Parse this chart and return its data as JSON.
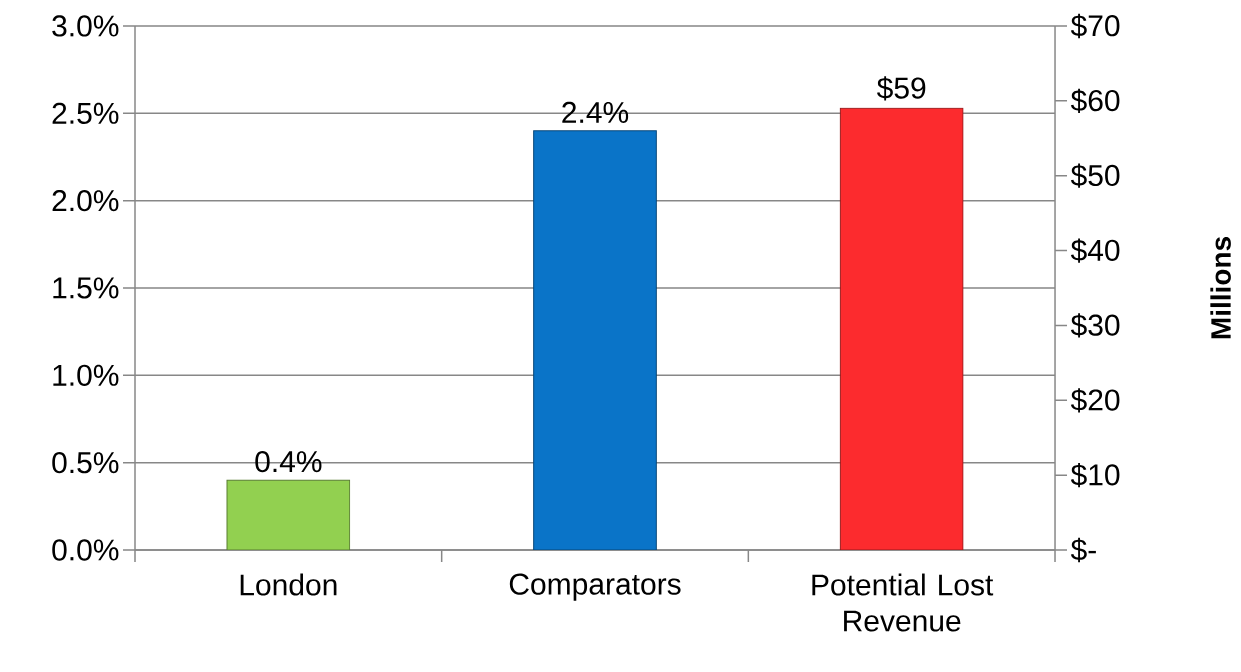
{
  "chart_data": {
    "type": "bar",
    "categories": [
      "London",
      "Comparators",
      "Potential Lost Revenue"
    ],
    "series": [
      {
        "values": [
          0.4,
          2.4,
          null
        ],
        "colors": [
          "#92d050",
          "#0a74c8",
          null
        ],
        "value_labels": [
          "0.4%",
          "2.4%",
          null
        ]
      },
      {
        "values": [
          null,
          null,
          59
        ],
        "colors": [
          null,
          null,
          "#fc2b2e"
        ],
        "axis": "y2",
        "value_labels": [
          null,
          null,
          "$59"
        ]
      }
    ],
    "ylim": [
      0,
      3.0
    ],
    "yticks": [
      {
        "value": 0,
        "label": "0.0%"
      },
      {
        "value": 0.5,
        "label": "0.5%"
      },
      {
        "value": 1.0,
        "label": "1.0%"
      },
      {
        "value": 1.5,
        "label": "1.5%"
      },
      {
        "value": 2.0,
        "label": "2.0%"
      },
      {
        "value": 2.5,
        "label": "2.5%"
      },
      {
        "value": 3.0,
        "label": "3.0%"
      }
    ],
    "y2lim": [
      0,
      70
    ],
    "y2ticks": [
      {
        "value": 0,
        "label": "$-"
      },
      {
        "value": 10,
        "label": "$10"
      },
      {
        "value": 20,
        "label": "$20"
      },
      {
        "value": 30,
        "label": "$30"
      },
      {
        "value": 40,
        "label": "$40"
      },
      {
        "value": 50,
        "label": "$50"
      },
      {
        "value": 60,
        "label": "$60"
      },
      {
        "value": 70,
        "label": "$70"
      }
    ],
    "y2label": "Millions",
    "grid": "y"
  }
}
